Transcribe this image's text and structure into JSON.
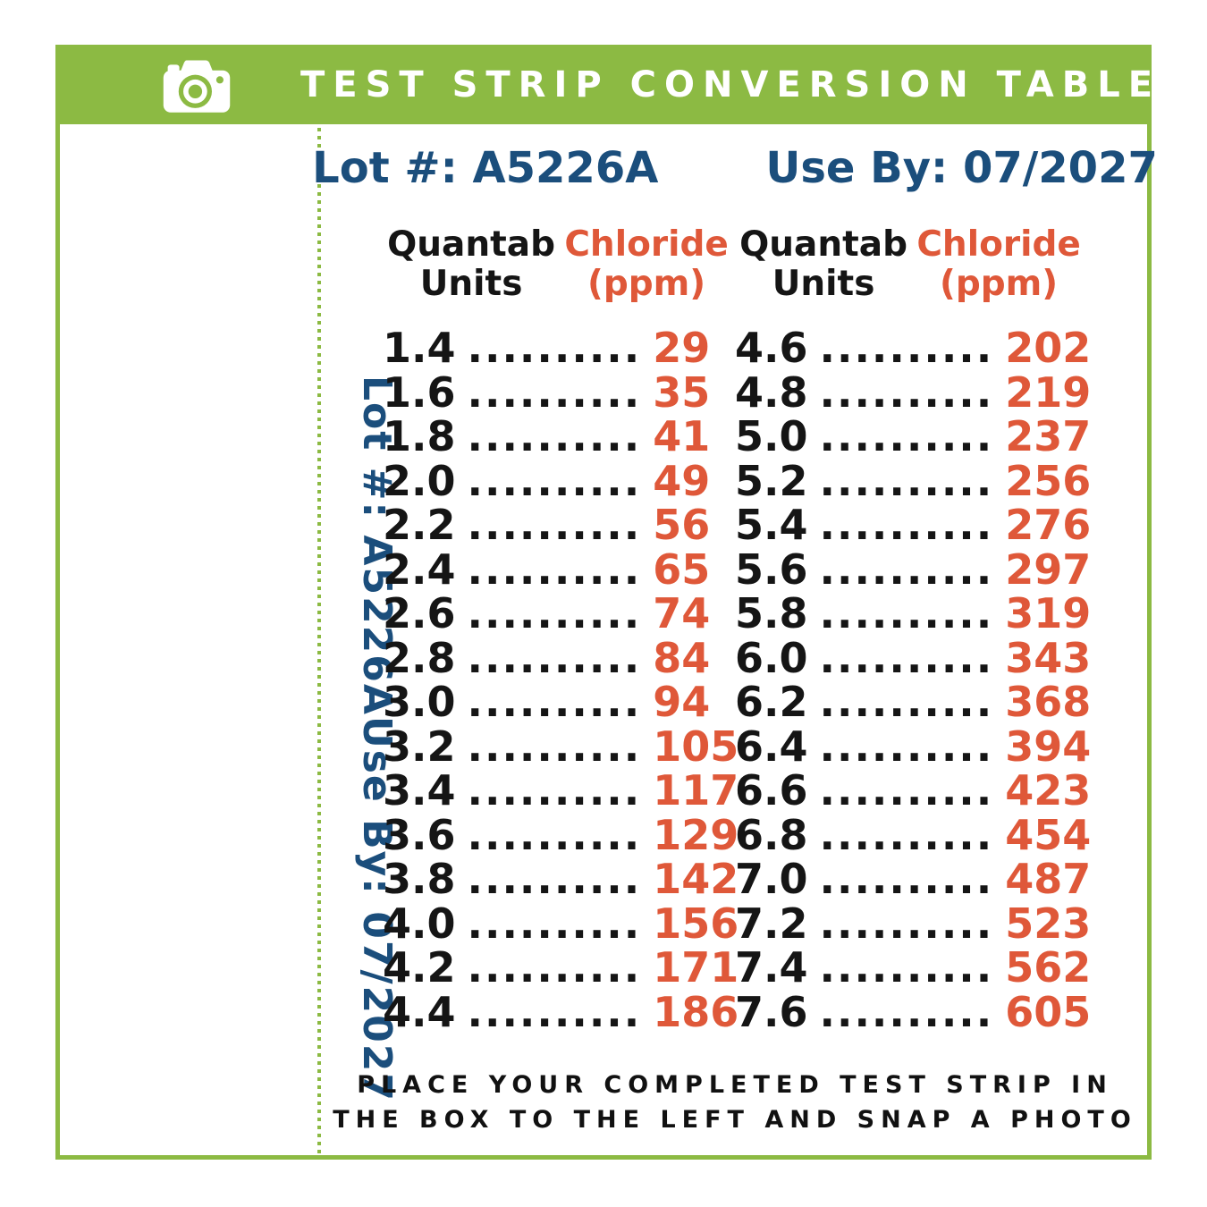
{
  "banner": {
    "title": "TEST STRIP CONVERSION TABLE"
  },
  "colors": {
    "green": "#8CBA43",
    "blue": "#1B4E7C",
    "orange": "#DF5839",
    "black": "#151515"
  },
  "lot_line": {
    "lot": "Lot #: A5226A",
    "use_by": "Use By: 07/2027"
  },
  "side_labels": {
    "lot": "Lot #: A5226A",
    "use_by": "Use By: 07/2027"
  },
  "table": {
    "dots": "..........",
    "headers": {
      "units_line1": "Quantab",
      "units_line2": "Units",
      "ppm_line1": "Chloride",
      "ppm_line2": "(ppm)"
    },
    "columns": [
      {
        "rows": [
          {
            "units": "1.4",
            "ppm": "29"
          },
          {
            "units": "1.6",
            "ppm": "35"
          },
          {
            "units": "1.8",
            "ppm": "41"
          },
          {
            "units": "2.0",
            "ppm": "49"
          },
          {
            "units": "2.2",
            "ppm": "56"
          },
          {
            "units": "2.4",
            "ppm": "65"
          },
          {
            "units": "2.6",
            "ppm": "74"
          },
          {
            "units": "2.8",
            "ppm": "84"
          },
          {
            "units": "3.0",
            "ppm": "94"
          },
          {
            "units": "3.2",
            "ppm": "105"
          },
          {
            "units": "3.4",
            "ppm": "117"
          },
          {
            "units": "3.6",
            "ppm": "129"
          },
          {
            "units": "3.8",
            "ppm": "142"
          },
          {
            "units": "4.0",
            "ppm": "156"
          },
          {
            "units": "4.2",
            "ppm": "171"
          },
          {
            "units": "4.4",
            "ppm": "186"
          }
        ]
      },
      {
        "rows": [
          {
            "units": "4.6",
            "ppm": "202"
          },
          {
            "units": "4.8",
            "ppm": "219"
          },
          {
            "units": "5.0",
            "ppm": "237"
          },
          {
            "units": "5.2",
            "ppm": "256"
          },
          {
            "units": "5.4",
            "ppm": "276"
          },
          {
            "units": "5.6",
            "ppm": "297"
          },
          {
            "units": "5.8",
            "ppm": "319"
          },
          {
            "units": "6.0",
            "ppm": "343"
          },
          {
            "units": "6.2",
            "ppm": "368"
          },
          {
            "units": "6.4",
            "ppm": "394"
          },
          {
            "units": "6.6",
            "ppm": "423"
          },
          {
            "units": "6.8",
            "ppm": "454"
          },
          {
            "units": "7.0",
            "ppm": "487"
          },
          {
            "units": "7.2",
            "ppm": "523"
          },
          {
            "units": "7.4",
            "ppm": "562"
          },
          {
            "units": "7.6",
            "ppm": "605"
          }
        ]
      }
    ]
  },
  "footer": {
    "line1": "PLACE YOUR COMPLETED TEST STRIP IN",
    "line2": "THE BOX TO THE LEFT AND SNAP A PHOTO"
  }
}
